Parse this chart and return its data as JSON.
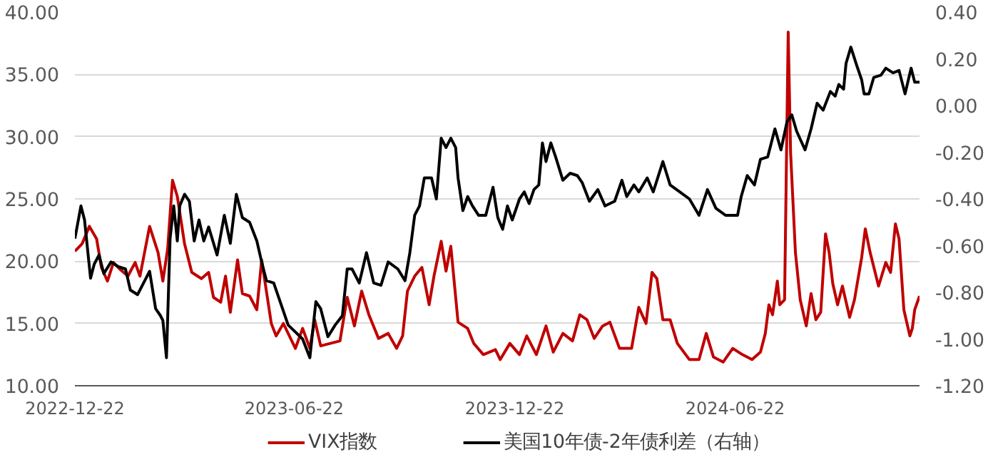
{
  "chart_data": {
    "type": "line",
    "grid": "y",
    "legend": "bottom",
    "line_style": "solid",
    "marker": "none",
    "xlim": [
      "2022-12-22",
      "2024-11-22"
    ],
    "xticks": [
      "2022-12-22",
      "2023-06-22",
      "2023-12-22",
      "2024-06-22"
    ],
    "ylim": [
      10,
      40
    ],
    "yticks": [
      {
        "value": 10,
        "label": "10.00"
      },
      {
        "value": 15,
        "label": "15.00"
      },
      {
        "value": 20,
        "label": "20.00"
      },
      {
        "value": 25,
        "label": "25.00"
      },
      {
        "value": 30,
        "label": "30.00"
      },
      {
        "value": 35,
        "label": "35.00"
      },
      {
        "value": 40,
        "label": "40.00"
      }
    ],
    "y2lim": [
      -1.2,
      0.4
    ],
    "y2ticks": [
      {
        "value": -1.2,
        "label": "-1.20"
      },
      {
        "value": -1.0,
        "label": "-1.00"
      },
      {
        "value": -0.8,
        "label": "-0.80"
      },
      {
        "value": -0.6,
        "label": "-0.60"
      },
      {
        "value": -0.4,
        "label": "-0.40"
      },
      {
        "value": -0.2,
        "label": "-0.20"
      },
      {
        "value": 0,
        "label": "0.00"
      },
      {
        "value": 0.2,
        "label": "0.20"
      },
      {
        "value": 0.4,
        "label": "0.40"
      }
    ],
    "series": [
      {
        "name": "VIX指数",
        "color": "#c00000",
        "x": [
          "2022-12-22",
          "2022-12-28",
          "2023-01-03",
          "2023-01-09",
          "2023-01-13",
          "2023-01-18",
          "2023-01-23",
          "2023-01-29",
          "2023-02-04",
          "2023-02-10",
          "2023-02-14",
          "2023-02-22",
          "2023-03-01",
          "2023-03-05",
          "2023-03-09",
          "2023-03-13",
          "2023-03-17",
          "2023-03-23",
          "2023-03-29",
          "2023-04-06",
          "2023-04-12",
          "2023-04-16",
          "2023-04-22",
          "2023-04-26",
          "2023-04-30",
          "2023-05-06",
          "2023-05-10",
          "2023-05-16",
          "2023-05-22",
          "2023-05-26",
          "2023-06-03",
          "2023-06-07",
          "2023-06-13",
          "2023-06-19",
          "2023-06-23",
          "2023-06-29",
          "2023-07-05",
          "2023-07-09",
          "2023-07-14",
          "2023-07-22",
          "2023-07-30",
          "2023-08-05",
          "2023-08-11",
          "2023-08-17",
          "2023-08-23",
          "2023-08-31",
          "2023-09-08",
          "2023-09-15",
          "2023-09-20",
          "2023-09-24",
          "2023-09-30",
          "2023-10-06",
          "2023-10-12",
          "2023-10-16",
          "2023-10-22",
          "2023-10-26",
          "2023-10-30",
          "2023-11-05",
          "2023-11-13",
          "2023-11-18",
          "2023-11-26",
          "2023-12-06",
          "2023-12-10",
          "2023-12-18",
          "2023-12-26",
          "2024-01-01",
          "2024-01-09",
          "2024-01-17",
          "2024-01-23",
          "2024-01-31",
          "2024-02-08",
          "2024-02-14",
          "2024-02-20",
          "2024-02-26",
          "2024-03-04",
          "2024-03-10",
          "2024-03-18",
          "2024-03-28",
          "2024-04-03",
          "2024-04-09",
          "2024-04-14",
          "2024-04-18",
          "2024-04-23",
          "2024-04-29",
          "2024-05-05",
          "2024-05-15",
          "2024-05-23",
          "2024-05-29",
          "2024-06-04",
          "2024-06-12",
          "2024-06-20",
          "2024-06-28",
          "2024-07-06",
          "2024-07-13",
          "2024-07-17",
          "2024-07-20",
          "2024-07-23",
          "2024-07-27",
          "2024-07-29",
          "2024-08-02",
          "2024-08-05",
          "2024-08-07",
          "2024-08-11",
          "2024-08-15",
          "2024-08-20",
          "2024-08-24",
          "2024-08-28",
          "2024-09-01",
          "2024-09-05",
          "2024-09-08",
          "2024-09-11",
          "2024-09-15",
          "2024-09-19",
          "2024-09-25",
          "2024-09-29",
          "2024-10-05",
          "2024-10-08",
          "2024-10-12",
          "2024-10-19",
          "2024-10-25",
          "2024-10-29",
          "2024-11-02",
          "2024-11-05",
          "2024-11-09",
          "2024-11-14",
          "2024-11-16",
          "2024-11-18",
          "2024-11-22"
        ],
        "values": [
          20.8,
          21.4,
          22.8,
          21.8,
          19.5,
          18.4,
          19.9,
          19.3,
          18.8,
          19.9,
          18.8,
          22.8,
          20.7,
          18.4,
          21.0,
          26.5,
          25.2,
          21.4,
          19.1,
          18.6,
          19.1,
          17.1,
          16.7,
          18.8,
          15.9,
          20.1,
          17.4,
          17.2,
          16.1,
          20.1,
          15.0,
          14.0,
          15.0,
          13.8,
          13.0,
          14.6,
          13.0,
          15.3,
          13.2,
          13.4,
          13.6,
          17.1,
          14.8,
          17.6,
          15.7,
          13.8,
          14.2,
          13.0,
          14.0,
          17.6,
          18.8,
          19.5,
          16.5,
          18.8,
          21.6,
          19.2,
          21.2,
          15.1,
          14.6,
          13.4,
          12.5,
          12.9,
          12.1,
          13.4,
          12.5,
          14.0,
          12.5,
          14.8,
          12.7,
          14.2,
          13.6,
          15.7,
          15.3,
          13.8,
          14.8,
          15.1,
          13.0,
          13.0,
          16.3,
          15.0,
          19.1,
          18.6,
          15.3,
          15.3,
          13.4,
          12.1,
          12.1,
          14.2,
          12.3,
          11.9,
          13.0,
          12.5,
          12.1,
          12.7,
          14.2,
          16.5,
          15.7,
          18.4,
          16.5,
          16.9,
          38.4,
          28.7,
          20.7,
          16.9,
          14.8,
          17.4,
          15.3,
          15.9,
          22.2,
          20.7,
          18.2,
          16.5,
          18.0,
          15.5,
          16.9,
          20.3,
          22.6,
          20.7,
          18.0,
          19.9,
          19.1,
          23.0,
          21.8,
          16.1,
          14.0,
          14.6,
          16.1,
          17.2
        ]
      },
      {
        "name": "美国10年债-2年债利差（右轴）",
        "color": "#000000",
        "axis": "y2",
        "x": [
          "2022-12-22",
          "2022-12-27",
          "2022-12-30",
          "2023-01-04",
          "2023-01-07",
          "2023-01-11",
          "2023-01-15",
          "2023-01-21",
          "2023-01-27",
          "2023-02-02",
          "2023-02-06",
          "2023-02-12",
          "2023-02-16",
          "2023-02-22",
          "2023-02-27",
          "2023-03-03",
          "2023-03-05",
          "2023-03-08",
          "2023-03-11",
          "2023-03-14",
          "2023-03-17",
          "2023-03-19",
          "2023-03-23",
          "2023-03-27",
          "2023-03-31",
          "2023-04-04",
          "2023-04-08",
          "2023-04-12",
          "2023-04-19",
          "2023-04-25",
          "2023-04-30",
          "2023-05-05",
          "2023-05-10",
          "2023-05-16",
          "2023-05-22",
          "2023-05-26",
          "2023-05-30",
          "2023-06-05",
          "2023-06-11",
          "2023-06-17",
          "2023-06-23",
          "2023-06-29",
          "2023-07-05",
          "2023-07-10",
          "2023-07-14",
          "2023-07-20",
          "2023-07-26",
          "2023-08-01",
          "2023-08-05",
          "2023-08-09",
          "2023-08-15",
          "2023-08-21",
          "2023-08-27",
          "2023-09-02",
          "2023-09-08",
          "2023-09-16",
          "2023-09-22",
          "2023-09-26",
          "2023-09-30",
          "2023-10-04",
          "2023-10-08",
          "2023-10-14",
          "2023-10-18",
          "2023-10-22",
          "2023-10-26",
          "2023-10-30",
          "2023-11-03",
          "2023-11-05",
          "2023-11-09",
          "2023-11-13",
          "2023-11-17",
          "2023-11-22",
          "2023-11-28",
          "2023-12-04",
          "2023-12-08",
          "2023-12-12",
          "2023-12-16",
          "2023-12-20",
          "2023-12-26",
          "2023-12-30",
          "2024-01-03",
          "2024-01-07",
          "2024-01-11",
          "2024-01-14",
          "2024-01-17",
          "2024-01-21",
          "2024-01-25",
          "2024-01-31",
          "2024-02-06",
          "2024-02-12",
          "2024-02-16",
          "2024-02-22",
          "2024-02-29",
          "2024-03-06",
          "2024-03-14",
          "2024-03-20",
          "2024-03-24",
          "2024-03-30",
          "2024-04-03",
          "2024-04-10",
          "2024-04-15",
          "2024-04-23",
          "2024-04-29",
          "2024-05-07",
          "2024-05-15",
          "2024-05-23",
          "2024-05-30",
          "2024-06-06",
          "2024-06-14",
          "2024-06-24",
          "2024-06-27",
          "2024-07-02",
          "2024-07-08",
          "2024-07-13",
          "2024-07-19",
          "2024-07-25",
          "2024-07-30",
          "2024-08-04",
          "2024-08-08",
          "2024-08-12",
          "2024-08-19",
          "2024-08-24",
          "2024-08-29",
          "2024-09-03",
          "2024-09-09",
          "2024-09-13",
          "2024-09-16",
          "2024-09-20",
          "2024-09-22",
          "2024-09-26",
          "2024-10-01",
          "2024-10-05",
          "2024-10-07",
          "2024-10-11",
          "2024-10-15",
          "2024-10-21",
          "2024-10-25",
          "2024-10-31",
          "2024-11-05",
          "2024-11-10",
          "2024-11-15",
          "2024-11-18",
          "2024-11-22"
        ],
        "values": [
          -0.57,
          -0.43,
          -0.49,
          -0.74,
          -0.68,
          -0.64,
          -0.72,
          -0.67,
          -0.69,
          -0.7,
          -0.79,
          -0.81,
          -0.77,
          -0.71,
          -0.87,
          -0.9,
          -0.92,
          -1.08,
          -0.57,
          -0.43,
          -0.58,
          -0.43,
          -0.38,
          -0.41,
          -0.58,
          -0.49,
          -0.58,
          -0.52,
          -0.64,
          -0.47,
          -0.59,
          -0.38,
          -0.48,
          -0.5,
          -0.58,
          -0.67,
          -0.75,
          -0.76,
          -0.85,
          -0.94,
          -0.97,
          -1.0,
          -1.08,
          -0.84,
          -0.87,
          -0.99,
          -0.94,
          -0.9,
          -0.7,
          -0.7,
          -0.76,
          -0.63,
          -0.76,
          -0.77,
          -0.67,
          -0.7,
          -0.75,
          -0.63,
          -0.47,
          -0.43,
          -0.31,
          -0.31,
          -0.4,
          -0.14,
          -0.18,
          -0.14,
          -0.18,
          -0.31,
          -0.45,
          -0.39,
          -0.43,
          -0.47,
          -0.47,
          -0.35,
          -0.48,
          -0.53,
          -0.43,
          -0.49,
          -0.4,
          -0.37,
          -0.42,
          -0.36,
          -0.34,
          -0.16,
          -0.24,
          -0.16,
          -0.22,
          -0.32,
          -0.29,
          -0.3,
          -0.33,
          -0.41,
          -0.36,
          -0.43,
          -0.41,
          -0.32,
          -0.39,
          -0.34,
          -0.37,
          -0.31,
          -0.37,
          -0.24,
          -0.34,
          -0.37,
          -0.4,
          -0.47,
          -0.36,
          -0.44,
          -0.47,
          -0.47,
          -0.39,
          -0.3,
          -0.34,
          -0.23,
          -0.22,
          -0.1,
          -0.19,
          -0.07,
          -0.04,
          -0.11,
          -0.19,
          -0.1,
          0.01,
          -0.02,
          0.06,
          0.04,
          0.09,
          0.07,
          0.18,
          0.25,
          0.17,
          0.11,
          0.05,
          0.05,
          0.12,
          0.13,
          0.16,
          0.14,
          0.15,
          0.05,
          0.16,
          0.1,
          0.1
        ]
      }
    ]
  }
}
